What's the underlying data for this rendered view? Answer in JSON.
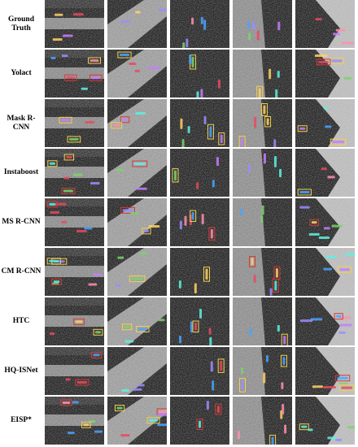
{
  "figure": {
    "rows": [
      {
        "label": "Ground Truth"
      },
      {
        "label": "Yolact"
      },
      {
        "label": "Mask R-CNN"
      },
      {
        "label": "Instaboost"
      },
      {
        "label": "MS R-CNN"
      },
      {
        "label": "CM R-CNN"
      },
      {
        "label": "HTC"
      },
      {
        "label": "HQ-ISNet"
      },
      {
        "label": "EISP*"
      }
    ]
  }
}
